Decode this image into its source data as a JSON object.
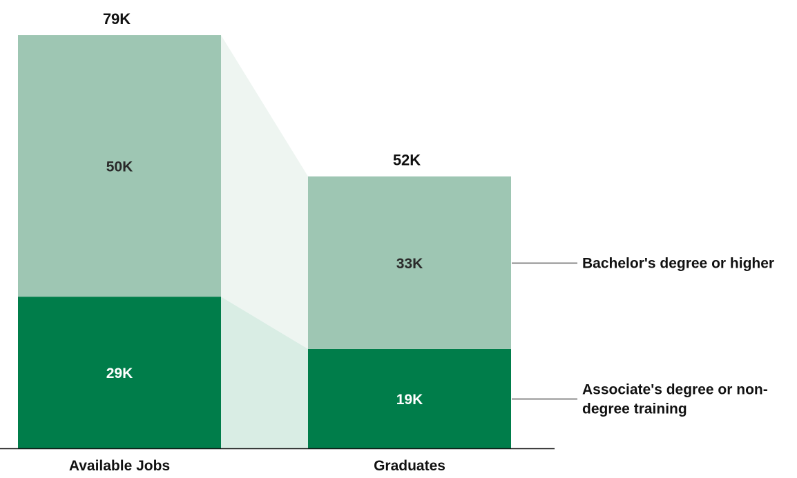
{
  "chart_data": {
    "type": "bar",
    "stacked": true,
    "categories": [
      "Available Jobs",
      "Graduates"
    ],
    "totals": [
      {
        "label": "79K",
        "value": 79
      },
      {
        "label": "52K",
        "value": 52
      }
    ],
    "series": [
      {
        "name": "Associate's degree or non-degree training",
        "legend_lines": [
          "Associate's degree or non-",
          "degree training"
        ],
        "values": [
          29,
          19
        ],
        "labels": [
          "29K",
          "19K"
        ],
        "color": "#007d4a",
        "connector_color": "#d9ede4",
        "label_color": "#ffffff"
      },
      {
        "name": "Bachelor's degree or higher",
        "legend_lines": [
          "Bachelor's degree or higher"
        ],
        "values": [
          50,
          33
        ],
        "labels": [
          "50K",
          "33K"
        ],
        "color": "#9ec6b3",
        "connector_color": "#eef5f1",
        "label_color": "#2a2a2a"
      }
    ],
    "ylim": [
      0,
      79
    ],
    "grid": false,
    "legend_position": "right",
    "xlabel": "",
    "ylabel": ""
  }
}
